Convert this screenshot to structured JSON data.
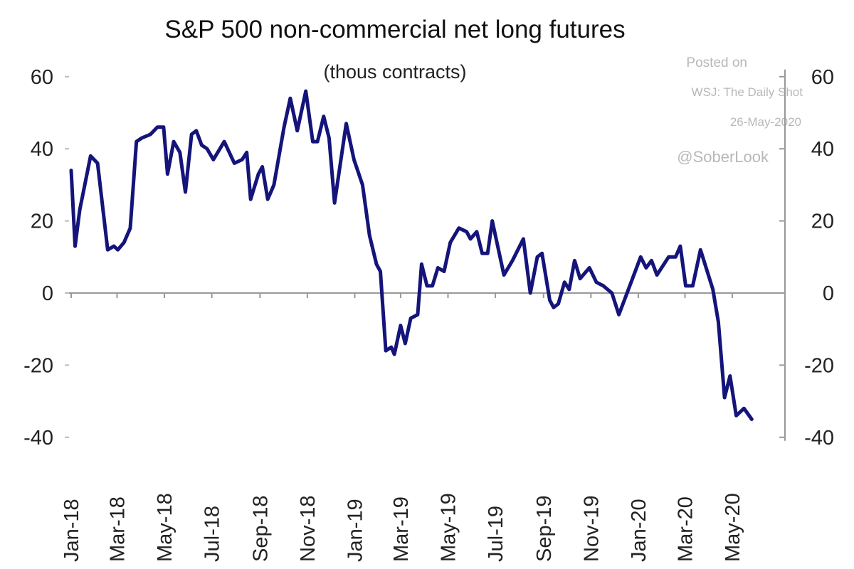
{
  "chart_data": {
    "type": "line",
    "title": "S&P 500 non-commercial net long futures",
    "subtitle": "(thous contracts)",
    "xlabel": "",
    "ylabel": "",
    "ylim": [
      -40,
      60
    ],
    "yticks": [
      "60",
      "40",
      "20",
      "0",
      "-20",
      "-40"
    ],
    "ytick_values": [
      60,
      40,
      20,
      0,
      -20,
      -40
    ],
    "xticks": [
      "Jan-18",
      "Mar-18",
      "May-18",
      "Jul-18",
      "Sep-18",
      "Nov-18",
      "Jan-19",
      "Mar-19",
      "May-19",
      "Jul-19",
      "Sep-19",
      "Nov-19",
      "Jan-20",
      "Mar-20",
      "May-20"
    ],
    "xtick_dates": [
      "2018-01-01",
      "2018-03-01",
      "2018-05-01",
      "2018-07-01",
      "2018-09-01",
      "2018-11-01",
      "2019-01-01",
      "2019-03-01",
      "2019-05-01",
      "2019-07-01",
      "2019-09-01",
      "2019-11-01",
      "2020-01-01",
      "2020-03-01",
      "2020-05-01"
    ],
    "dual_y_axis": true,
    "grid": false,
    "line_color": "#14147a",
    "series": [
      {
        "x": [
          "2018-01-01",
          "2018-01-06",
          "2018-01-12",
          "2018-01-26",
          "2018-02-04",
          "2018-02-17",
          "2018-02-25",
          "2018-03-02",
          "2018-03-10",
          "2018-03-18",
          "2018-03-26",
          "2018-04-02",
          "2018-04-13",
          "2018-04-22",
          "2018-04-30",
          "2018-05-05",
          "2018-05-13",
          "2018-05-21",
          "2018-05-28",
          "2018-06-05",
          "2018-06-11",
          "2018-06-18",
          "2018-06-25",
          "2018-07-03",
          "2018-07-17",
          "2018-07-30",
          "2018-08-09",
          "2018-08-15",
          "2018-08-20",
          "2018-08-30",
          "2018-09-04",
          "2018-09-11",
          "2018-09-19",
          "2018-10-02",
          "2018-10-10",
          "2018-10-19",
          "2018-10-30",
          "2018-11-08",
          "2018-11-14",
          "2018-11-22",
          "2018-11-29",
          "2018-12-06",
          "2018-12-21",
          "2018-12-31",
          "2019-01-11",
          "2019-01-20",
          "2019-01-29",
          "2019-02-03",
          "2019-02-10",
          "2019-02-17",
          "2019-02-21",
          "2019-03-01",
          "2019-03-07",
          "2019-03-14",
          "2019-03-23",
          "2019-03-28",
          "2019-04-04",
          "2019-04-11",
          "2019-04-18",
          "2019-04-26",
          "2019-05-04",
          "2019-05-15",
          "2019-05-25",
          "2019-05-30",
          "2019-06-07",
          "2019-06-14",
          "2019-06-21",
          "2019-06-27",
          "2019-07-12",
          "2019-07-23",
          "2019-08-06",
          "2019-08-15",
          "2019-08-24",
          "2019-08-30",
          "2019-09-09",
          "2019-09-14",
          "2019-09-20",
          "2019-09-28",
          "2019-10-04",
          "2019-10-11",
          "2019-10-18",
          "2019-10-30",
          "2019-11-08",
          "2019-11-17",
          "2019-11-28",
          "2019-12-07",
          "2019-12-14",
          "2020-01-04",
          "2020-01-11",
          "2020-01-18",
          "2020-01-25",
          "2020-02-09",
          "2020-02-18",
          "2020-02-24",
          "2020-03-02",
          "2020-03-11",
          "2020-03-21",
          "2020-04-06",
          "2020-04-13",
          "2020-04-21",
          "2020-04-28",
          "2020-05-06",
          "2020-05-16",
          "2020-05-26"
        ],
        "values": [
          34,
          13,
          23,
          38,
          36,
          12,
          13,
          12,
          14,
          18,
          42,
          43,
          44,
          46,
          46,
          33,
          42,
          39,
          28,
          44,
          45,
          41,
          40,
          37,
          42,
          36,
          37,
          39,
          26,
          33,
          35,
          26,
          30,
          46,
          54,
          45,
          56,
          42,
          42,
          49,
          43,
          25,
          47,
          37,
          30,
          16,
          8,
          6,
          -16,
          -15,
          -17,
          -9,
          -14,
          -7,
          -6,
          8,
          2,
          2,
          7,
          6,
          14,
          18,
          17,
          15,
          17,
          11,
          11,
          20,
          5,
          9,
          15,
          0,
          10,
          11,
          -2,
          -4,
          -3,
          3,
          1,
          9,
          4,
          7,
          3,
          2,
          0,
          -6,
          -2,
          10,
          7,
          9,
          5,
          10,
          10,
          13,
          2,
          2,
          12,
          1,
          -8,
          -29,
          -23,
          -34,
          -32,
          -35
        ]
      }
    ]
  },
  "watermark": {
    "line1": "Posted on",
    "line2": "WSJ: The Daily Shot",
    "line3": "26-May-2020",
    "line4": "@SoberLook"
  }
}
